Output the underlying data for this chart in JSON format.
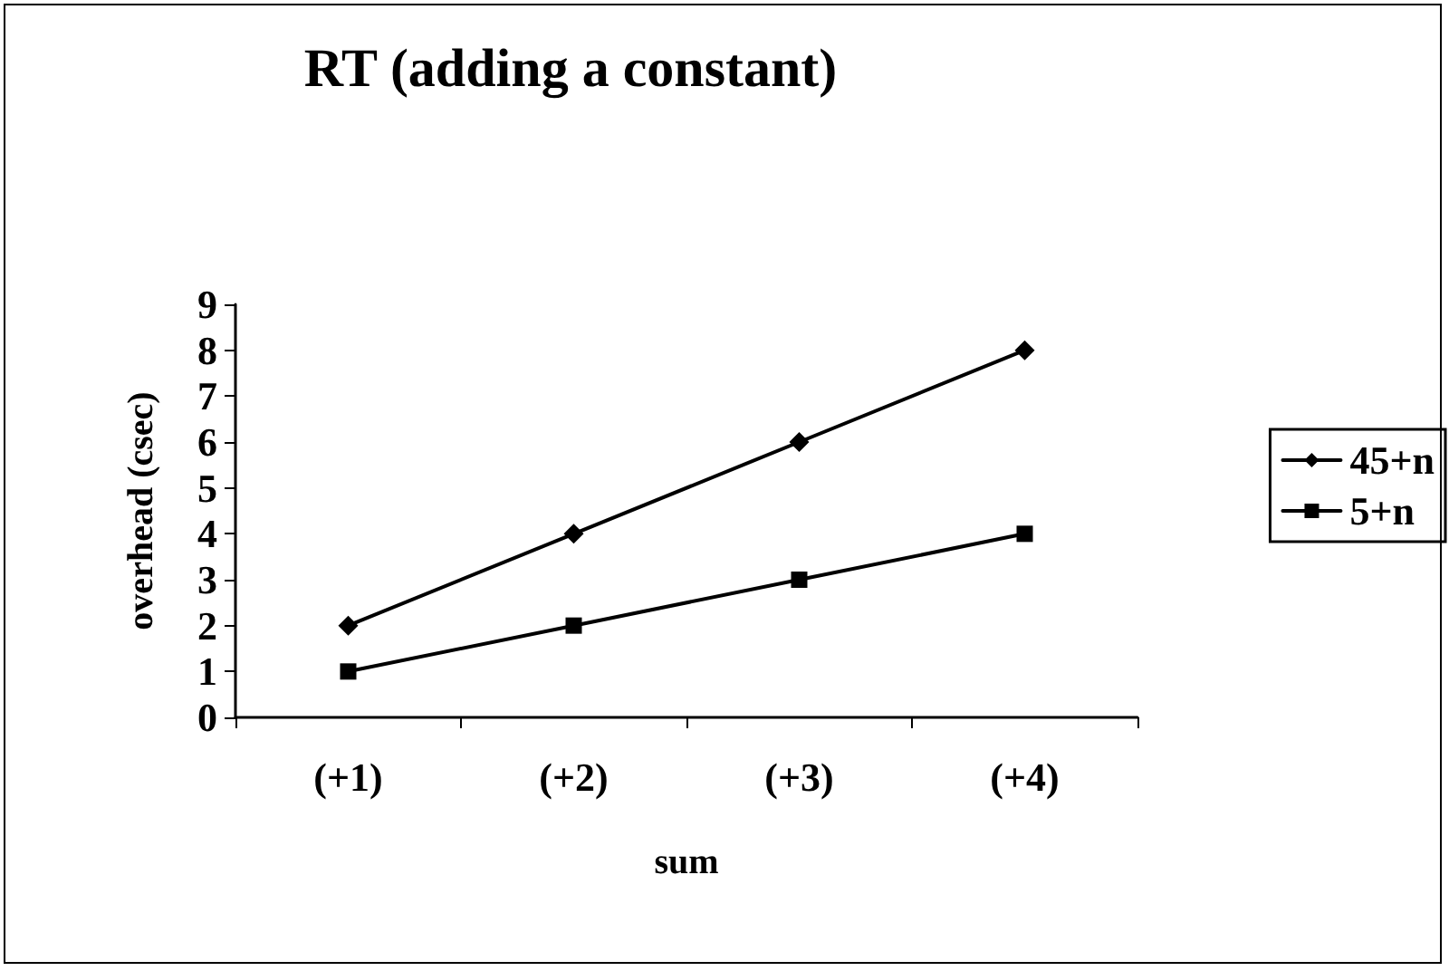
{
  "chart_data": {
    "type": "line",
    "title": "RT (adding a constant)",
    "xlabel": "sum",
    "ylabel": "overhead (csec)",
    "categories": [
      "(+1)",
      "(+2)",
      "(+3)",
      "(+4)"
    ],
    "series": [
      {
        "name": "45+n",
        "color": "#000000",
        "marker": "diamond",
        "values": [
          2,
          4,
          6,
          8
        ]
      },
      {
        "name": "5+n",
        "color": "#000000",
        "marker": "square",
        "values": [
          1,
          2,
          3,
          4
        ]
      }
    ],
    "ylim": [
      0,
      9
    ],
    "yticks": [
      0,
      1,
      2,
      3,
      4,
      5,
      6,
      7,
      8,
      9
    ],
    "grid": false,
    "legend": "right",
    "line_style": "solid"
  }
}
